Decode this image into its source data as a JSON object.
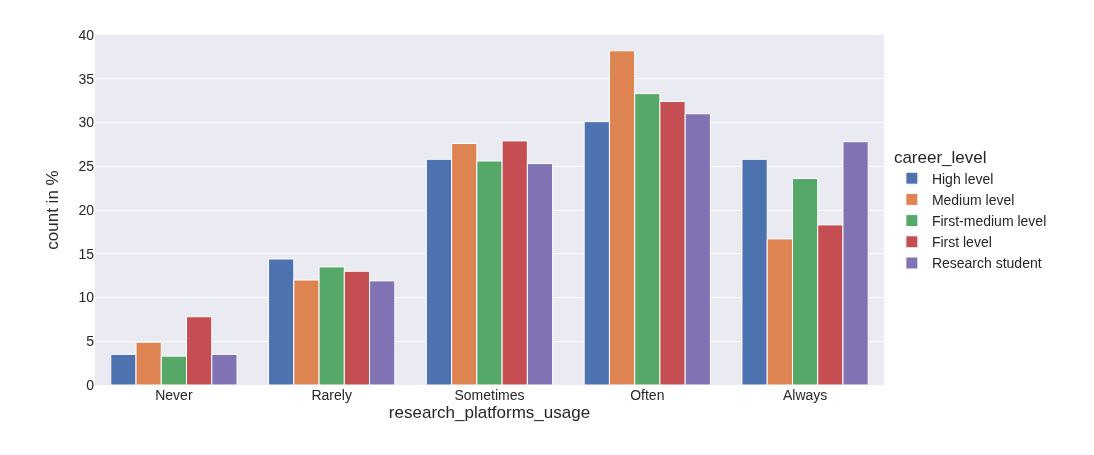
{
  "chart_data": {
    "type": "bar",
    "xlabel": "research_platforms_usage",
    "ylabel": "count in %",
    "legend_title": "career_level",
    "categories": [
      "Never",
      "Rarely",
      "Sometimes",
      "Often",
      "Always"
    ],
    "series": [
      {
        "name": "High level",
        "color": "#4c72b0",
        "values": [
          3.5,
          14.4,
          25.8,
          30.1,
          25.8
        ]
      },
      {
        "name": "Medium level",
        "color": "#dd8452",
        "values": [
          4.9,
          12.0,
          27.6,
          38.2,
          16.7
        ]
      },
      {
        "name": "First-medium level",
        "color": "#55a868",
        "values": [
          3.3,
          13.5,
          25.6,
          33.3,
          23.6
        ]
      },
      {
        "name": "First level",
        "color": "#c44e52",
        "values": [
          7.8,
          13.0,
          27.9,
          32.4,
          18.3
        ]
      },
      {
        "name": "Research student",
        "color": "#8172b3",
        "values": [
          3.5,
          11.9,
          25.3,
          31.0,
          27.8
        ]
      }
    ],
    "ylim": [
      0,
      40
    ],
    "yticks": [
      0,
      5,
      10,
      15,
      20,
      25,
      30,
      35,
      40
    ],
    "grid": "y",
    "legend": "right"
  }
}
